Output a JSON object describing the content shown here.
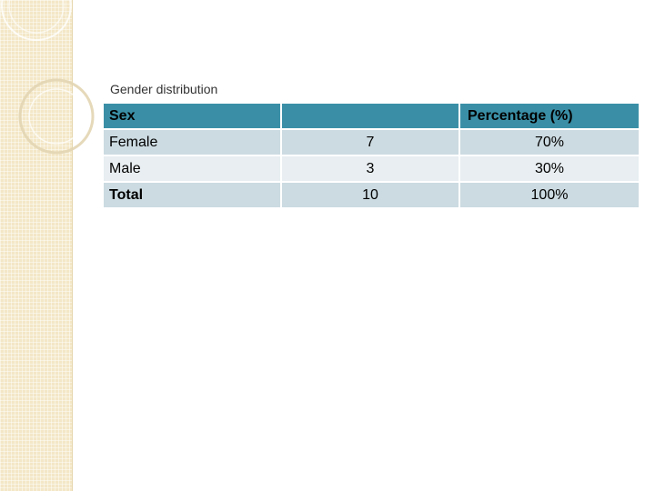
{
  "caption": "Gender distribution",
  "table": {
    "headers": [
      "Sex",
      "",
      "Percentage (%)"
    ],
    "rows": [
      [
        "Female",
        "7",
        "70%"
      ],
      [
        "Male",
        "3",
        "30%"
      ],
      [
        "Total",
        "10",
        "100%"
      ]
    ]
  },
  "colors": {
    "header_bg": "#3a8fa6",
    "row_dark": "#ccdbe1",
    "row_light": "#e8eef1",
    "sidebar_bg": "#f3e7c7"
  }
}
